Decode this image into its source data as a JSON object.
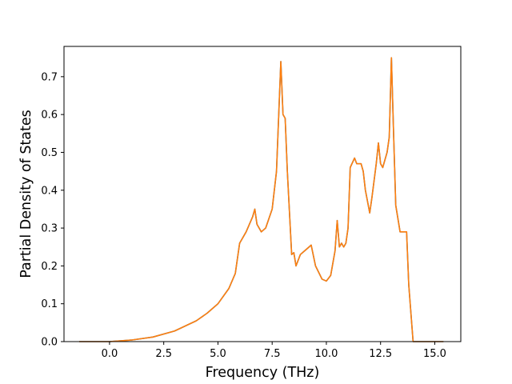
{
  "chart_data": {
    "type": "line",
    "title": "",
    "xlabel": "Frequency (THz)",
    "ylabel": "Partial Density of States",
    "xlim": [
      -2.1,
      16.2
    ],
    "ylim": [
      0.0,
      0.78
    ],
    "x_ticks": [
      0.0,
      2.5,
      5.0,
      7.5,
      10.0,
      12.5,
      15.0
    ],
    "x_tick_labels": [
      "0.0",
      "2.5",
      "5.0",
      "7.5",
      "10.0",
      "12.5",
      "15.0"
    ],
    "y_ticks": [
      0.0,
      0.1,
      0.2,
      0.3,
      0.4,
      0.5,
      0.6,
      0.7
    ],
    "y_tick_labels": [
      "0.0",
      "0.1",
      "0.2",
      "0.3",
      "0.4",
      "0.5",
      "0.6",
      "0.7"
    ],
    "grid": false,
    "legend": "none",
    "series": [
      {
        "color": "#1f77b4",
        "x": [
          -1.4,
          0.0,
          1.0,
          2.0,
          3.0,
          4.0,
          4.5,
          5.0,
          5.5,
          5.8,
          6.0,
          6.3,
          6.6,
          6.7,
          6.8,
          7.0,
          7.2,
          7.5,
          7.7,
          7.9,
          8.0,
          8.1,
          8.2,
          8.4,
          8.5,
          8.6,
          8.8,
          9.0,
          9.2,
          9.3,
          9.5,
          9.8,
          10.0,
          10.2,
          10.4,
          10.5,
          10.6,
          10.7,
          10.8,
          10.9,
          11.0,
          11.1,
          11.3,
          11.4,
          11.6,
          11.7,
          11.8,
          12.0,
          12.1,
          12.3,
          12.4,
          12.5,
          12.6,
          12.8,
          12.9,
          13.0,
          13.1,
          13.2,
          13.4,
          13.6,
          13.7,
          13.8,
          14.0,
          14.1,
          15.4
        ],
        "y": [
          0.0,
          0.0,
          0.004,
          0.012,
          0.028,
          0.055,
          0.075,
          0.1,
          0.14,
          0.18,
          0.26,
          0.29,
          0.33,
          0.35,
          0.31,
          0.29,
          0.3,
          0.35,
          0.45,
          0.74,
          0.6,
          0.59,
          0.45,
          0.23,
          0.235,
          0.2,
          0.23,
          0.24,
          0.25,
          0.255,
          0.2,
          0.165,
          0.16,
          0.175,
          0.24,
          0.32,
          0.25,
          0.26,
          0.25,
          0.26,
          0.3,
          0.46,
          0.485,
          0.47,
          0.47,
          0.45,
          0.4,
          0.34,
          0.38,
          0.47,
          0.525,
          0.47,
          0.46,
          0.5,
          0.54,
          0.75,
          0.55,
          0.36,
          0.29,
          0.29,
          0.29,
          0.15,
          0.0,
          0.0,
          0.0
        ]
      },
      {
        "color": "#ff7f0e",
        "x": [
          -1.4,
          0.0,
          1.0,
          2.0,
          3.0,
          4.0,
          4.5,
          5.0,
          5.5,
          5.8,
          6.0,
          6.3,
          6.6,
          6.7,
          6.8,
          7.0,
          7.2,
          7.5,
          7.7,
          7.9,
          8.0,
          8.1,
          8.2,
          8.4,
          8.5,
          8.6,
          8.8,
          9.0,
          9.2,
          9.3,
          9.5,
          9.8,
          10.0,
          10.2,
          10.4,
          10.5,
          10.6,
          10.7,
          10.8,
          10.9,
          11.0,
          11.1,
          11.3,
          11.4,
          11.6,
          11.7,
          11.8,
          12.0,
          12.1,
          12.3,
          12.4,
          12.5,
          12.6,
          12.8,
          12.9,
          13.0,
          13.1,
          13.2,
          13.4,
          13.6,
          13.7,
          13.8,
          14.0,
          14.1,
          15.4
        ],
        "y": [
          0.0,
          0.0,
          0.004,
          0.012,
          0.028,
          0.055,
          0.075,
          0.1,
          0.14,
          0.18,
          0.26,
          0.29,
          0.33,
          0.35,
          0.31,
          0.29,
          0.3,
          0.35,
          0.45,
          0.74,
          0.6,
          0.59,
          0.45,
          0.23,
          0.235,
          0.2,
          0.23,
          0.24,
          0.25,
          0.255,
          0.2,
          0.165,
          0.16,
          0.175,
          0.24,
          0.32,
          0.25,
          0.26,
          0.25,
          0.26,
          0.3,
          0.46,
          0.485,
          0.47,
          0.47,
          0.45,
          0.4,
          0.34,
          0.38,
          0.47,
          0.525,
          0.47,
          0.46,
          0.5,
          0.54,
          0.75,
          0.55,
          0.36,
          0.29,
          0.29,
          0.29,
          0.15,
          0.0,
          0.0,
          0.0
        ]
      }
    ]
  }
}
